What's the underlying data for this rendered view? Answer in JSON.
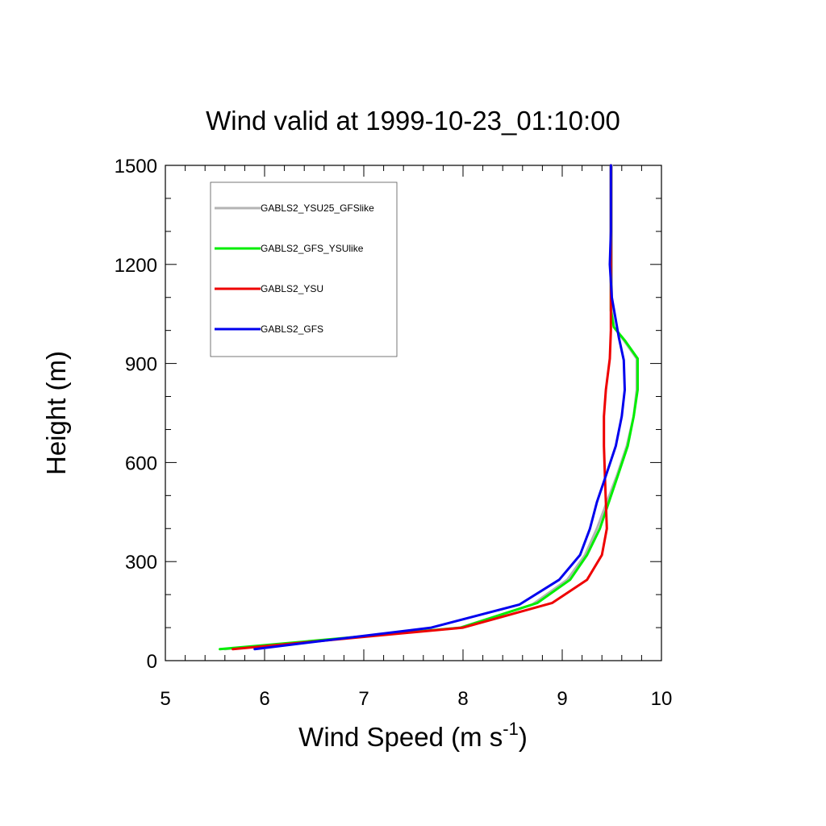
{
  "chart_data": {
    "type": "line",
    "title": "Wind valid at 1999-10-23_01:10:00",
    "xlabel": "Wind Speed (m s",
    "xlabel_superscript": "-1",
    "xlabel_suffix": ")",
    "ylabel": "Height (m)",
    "xlim": [
      5,
      10
    ],
    "ylim": [
      0,
      1500
    ],
    "x_ticks": [
      5,
      6,
      7,
      8,
      9,
      10
    ],
    "y_ticks": [
      0,
      300,
      600,
      900,
      1200,
      1500
    ],
    "x_minor_step": 0.2,
    "y_minor_step": 100,
    "grid": false,
    "legend_position": "top-left",
    "series": [
      {
        "name": "GABLS2_YSU25_GFSlike",
        "color": "#b4b4b4",
        "points": [
          [
            5.6,
            35
          ],
          [
            7.97,
            100
          ],
          [
            8.7,
            170
          ],
          [
            9.05,
            245
          ],
          [
            9.23,
            320
          ],
          [
            9.35,
            400
          ],
          [
            9.45,
            480
          ],
          [
            9.55,
            560
          ],
          [
            9.65,
            650
          ],
          [
            9.72,
            740
          ],
          [
            9.75,
            820
          ],
          [
            9.75,
            915
          ],
          [
            9.62,
            970
          ],
          [
            9.52,
            1010
          ],
          [
            9.5,
            1060
          ],
          [
            9.5,
            1200
          ],
          [
            9.5,
            1500
          ]
        ]
      },
      {
        "name": "GABLS2_GFS_YSUlike",
        "color": "#00ee00",
        "points": [
          [
            5.55,
            35
          ],
          [
            7.98,
            100
          ],
          [
            8.75,
            175
          ],
          [
            9.08,
            245
          ],
          [
            9.25,
            320
          ],
          [
            9.38,
            400
          ],
          [
            9.47,
            480
          ],
          [
            9.56,
            560
          ],
          [
            9.66,
            650
          ],
          [
            9.72,
            740
          ],
          [
            9.76,
            820
          ],
          [
            9.76,
            915
          ],
          [
            9.63,
            970
          ],
          [
            9.52,
            1010
          ],
          [
            9.49,
            1060
          ],
          [
            9.49,
            1200
          ],
          [
            9.49,
            1500
          ]
        ]
      },
      {
        "name": "GABLS2_YSU",
        "color": "#ee0000",
        "points": [
          [
            5.68,
            35
          ],
          [
            8.0,
            100
          ],
          [
            8.9,
            175
          ],
          [
            9.25,
            245
          ],
          [
            9.4,
            320
          ],
          [
            9.45,
            400
          ],
          [
            9.44,
            480
          ],
          [
            9.43,
            560
          ],
          [
            9.42,
            650
          ],
          [
            9.42,
            740
          ],
          [
            9.44,
            820
          ],
          [
            9.48,
            915
          ],
          [
            9.49,
            1000
          ],
          [
            9.49,
            1060
          ],
          [
            9.49,
            1200
          ],
          [
            9.49,
            1500
          ]
        ]
      },
      {
        "name": "GABLS2_GFS",
        "color": "#0000ee",
        "points": [
          [
            5.9,
            35
          ],
          [
            7.68,
            100
          ],
          [
            8.57,
            170
          ],
          [
            8.97,
            245
          ],
          [
            9.18,
            320
          ],
          [
            9.28,
            400
          ],
          [
            9.35,
            480
          ],
          [
            9.44,
            560
          ],
          [
            9.54,
            650
          ],
          [
            9.6,
            740
          ],
          [
            9.63,
            820
          ],
          [
            9.62,
            910
          ],
          [
            9.57,
            980
          ],
          [
            9.5,
            1100
          ],
          [
            9.48,
            1200
          ],
          [
            9.49,
            1300
          ],
          [
            9.49,
            1500
          ]
        ]
      }
    ]
  }
}
